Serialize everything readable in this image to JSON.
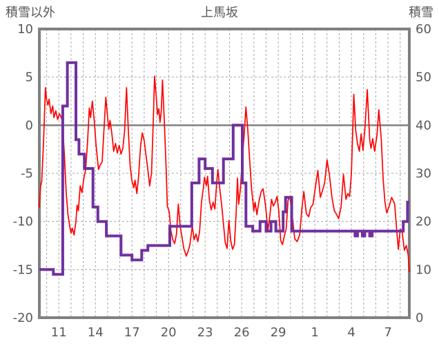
{
  "header": {
    "left_axis_title": "積雪以外",
    "chart_title": "上馬坂",
    "right_axis_title": "積雪"
  },
  "chart_data": {
    "type": "line",
    "title": "上馬坂",
    "legend_position": "none",
    "grid": {
      "vertical": "dashed-daily",
      "horizontal": "dashed-every-5",
      "zero_line": "solid"
    },
    "left_axis": {
      "label": "積雪以外",
      "min": -20,
      "max": 10,
      "ticks": [
        10,
        5,
        0,
        -5,
        -10,
        -15,
        -20
      ]
    },
    "right_axis": {
      "label": "積雪",
      "min": 0,
      "max": 60,
      "ticks": [
        60,
        50,
        40,
        30,
        20,
        10,
        0
      ]
    },
    "x_axis": {
      "start_day": 9.4,
      "end_day": 39.75,
      "gridline_step_days": 1,
      "tick_days": [
        11,
        14,
        17,
        20,
        23,
        26,
        29,
        32,
        35,
        38
      ],
      "tick_labels": [
        "11",
        "14",
        "17",
        "20",
        "23",
        "26",
        "29",
        "1",
        "4",
        "7"
      ]
    },
    "series": [
      {
        "name": "積雪以外(気温)",
        "axis": "left",
        "color": "#ff0000",
        "style": "line",
        "points": [
          [
            9.4,
            -8.5
          ],
          [
            9.5,
            -6.4
          ],
          [
            9.6,
            -5.8
          ],
          [
            9.75,
            -1.5
          ],
          [
            9.9,
            3.9
          ],
          [
            10.0,
            2.6
          ],
          [
            10.1,
            2.1
          ],
          [
            10.2,
            2.7
          ],
          [
            10.35,
            1.2
          ],
          [
            10.5,
            2.0
          ],
          [
            10.6,
            0.8
          ],
          [
            10.75,
            1.5
          ],
          [
            10.9,
            0.6
          ],
          [
            11.05,
            1.2
          ],
          [
            11.2,
            0.8
          ],
          [
            11.3,
            0.3
          ],
          [
            11.45,
            -3.0
          ],
          [
            11.6,
            -7.0
          ],
          [
            11.75,
            -9.3
          ],
          [
            11.9,
            -10.6
          ],
          [
            12.0,
            -11.2
          ],
          [
            12.1,
            -10.7
          ],
          [
            12.25,
            -11.4
          ],
          [
            12.4,
            -10.0
          ],
          [
            12.5,
            -8.3
          ],
          [
            12.6,
            -8.9
          ],
          [
            12.75,
            -6.3
          ],
          [
            12.9,
            -7.0
          ],
          [
            13.05,
            -5.5
          ],
          [
            13.2,
            -4.6
          ],
          [
            13.35,
            -1.8
          ],
          [
            13.5,
            1.8
          ],
          [
            13.6,
            0.8
          ],
          [
            13.75,
            2.5
          ],
          [
            13.9,
            0.5
          ],
          [
            14.05,
            -2.0
          ],
          [
            14.25,
            -4.6
          ],
          [
            14.4,
            -4.1
          ],
          [
            14.55,
            -3.8
          ],
          [
            14.7,
            -0.5
          ],
          [
            14.85,
            2.9
          ],
          [
            15.0,
            0.8
          ],
          [
            15.1,
            -0.4
          ],
          [
            15.2,
            0.5
          ],
          [
            15.35,
            -0.9
          ],
          [
            15.5,
            -2.7
          ],
          [
            15.65,
            -1.9
          ],
          [
            15.8,
            -2.9
          ],
          [
            15.95,
            -2.1
          ],
          [
            16.1,
            -3.0
          ],
          [
            16.25,
            -2.4
          ],
          [
            16.4,
            -0.5
          ],
          [
            16.55,
            3.9
          ],
          [
            16.7,
            -0.5
          ],
          [
            16.85,
            -4.3
          ],
          [
            17.0,
            -5.8
          ],
          [
            17.15,
            -6.5
          ],
          [
            17.25,
            -5.7
          ],
          [
            17.4,
            -7.1
          ],
          [
            17.55,
            -5.2
          ],
          [
            17.7,
            -2.2
          ],
          [
            17.85,
            -0.8
          ],
          [
            18.0,
            -1.6
          ],
          [
            18.15,
            -3.1
          ],
          [
            18.3,
            -4.6
          ],
          [
            18.45,
            -6.3
          ],
          [
            18.6,
            -5.0
          ],
          [
            18.75,
            0.5
          ],
          [
            18.85,
            5.1
          ],
          [
            19.0,
            2.8
          ],
          [
            19.1,
            1.1
          ],
          [
            19.2,
            1.7
          ],
          [
            19.3,
            0.3
          ],
          [
            19.4,
            1.4
          ],
          [
            19.5,
            4.7
          ],
          [
            19.65,
            0.5
          ],
          [
            19.8,
            -4.5
          ],
          [
            19.9,
            -8.4
          ],
          [
            20.05,
            -9.0
          ],
          [
            20.2,
            -11.0
          ],
          [
            20.35,
            -11.9
          ],
          [
            20.5,
            -12.3
          ],
          [
            20.65,
            -11.3
          ],
          [
            20.8,
            -8.2
          ],
          [
            20.95,
            -10.5
          ],
          [
            21.1,
            -11.6
          ],
          [
            21.25,
            -12.8
          ],
          [
            21.45,
            -13.6
          ],
          [
            21.6,
            -13.1
          ],
          [
            21.75,
            -12.4
          ],
          [
            21.95,
            -10.5
          ],
          [
            22.1,
            -11.9
          ],
          [
            22.25,
            -11.3
          ],
          [
            22.4,
            -12.1
          ],
          [
            22.55,
            -11.0
          ],
          [
            22.7,
            -8.0
          ],
          [
            22.85,
            -6.6
          ],
          [
            22.95,
            -5.4
          ],
          [
            23.1,
            -6.3
          ],
          [
            23.2,
            -5.3
          ],
          [
            23.35,
            -7.8
          ],
          [
            23.5,
            -8.8
          ],
          [
            23.65,
            -8.0
          ],
          [
            23.8,
            -8.7
          ],
          [
            23.95,
            -5.9
          ],
          [
            24.05,
            -4.6
          ],
          [
            24.2,
            -6.6
          ],
          [
            24.35,
            -8.2
          ],
          [
            24.5,
            -10.2
          ],
          [
            24.65,
            -12.2
          ],
          [
            24.8,
            -12.8
          ],
          [
            24.95,
            -9.9
          ],
          [
            25.1,
            -12.0
          ],
          [
            25.25,
            -12.9
          ],
          [
            25.4,
            -12.4
          ],
          [
            25.55,
            -9.0
          ],
          [
            25.65,
            -5.5
          ],
          [
            25.75,
            -8.2
          ],
          [
            25.9,
            -6.5
          ],
          [
            26.05,
            -3.5
          ],
          [
            26.2,
            -1.0
          ],
          [
            26.35,
            1.9
          ],
          [
            26.5,
            -0.5
          ],
          [
            26.65,
            -3.5
          ],
          [
            26.8,
            -6.5
          ],
          [
            27.0,
            -8.9
          ],
          [
            27.1,
            -8.0
          ],
          [
            27.25,
            -9.3
          ],
          [
            27.4,
            -8.0
          ],
          [
            27.6,
            -6.9
          ],
          [
            27.75,
            -6.6
          ],
          [
            27.95,
            -8.3
          ],
          [
            28.15,
            -10.9
          ],
          [
            28.3,
            -9.5
          ],
          [
            28.45,
            -7.7
          ],
          [
            28.6,
            -8.4
          ],
          [
            28.75,
            -8.0
          ],
          [
            28.9,
            -7.4
          ],
          [
            29.05,
            -9.0
          ],
          [
            29.2,
            -12.0
          ],
          [
            29.35,
            -12.4
          ],
          [
            29.5,
            -11.5
          ],
          [
            29.65,
            -10.8
          ],
          [
            29.8,
            -7.8
          ],
          [
            29.95,
            -7.4
          ],
          [
            30.15,
            -9.5
          ],
          [
            30.35,
            -11.8
          ],
          [
            30.55,
            -12.1
          ],
          [
            30.75,
            -11.4
          ],
          [
            30.95,
            -8.5
          ],
          [
            31.1,
            -6.9
          ],
          [
            31.3,
            -9.2
          ],
          [
            31.5,
            -9.5
          ],
          [
            31.65,
            -8.6
          ],
          [
            31.85,
            -8.2
          ],
          [
            32.05,
            -6.4
          ],
          [
            32.25,
            -4.7
          ],
          [
            32.45,
            -7.5
          ],
          [
            32.6,
            -6.9
          ],
          [
            32.8,
            -6.0
          ],
          [
            33.0,
            -3.6
          ],
          [
            33.2,
            -5.2
          ],
          [
            33.4,
            -7.5
          ],
          [
            33.6,
            -8.9
          ],
          [
            33.8,
            -9.3
          ],
          [
            33.95,
            -9.7
          ],
          [
            34.15,
            -8.5
          ],
          [
            34.35,
            -5.1
          ],
          [
            34.55,
            -7.7
          ],
          [
            34.7,
            -7.1
          ],
          [
            34.85,
            -7.4
          ],
          [
            35.0,
            -5.0
          ],
          [
            35.2,
            3.2
          ],
          [
            35.35,
            -0.5
          ],
          [
            35.5,
            -1.9
          ],
          [
            35.65,
            -2.7
          ],
          [
            35.8,
            -0.9
          ],
          [
            35.95,
            -2.6
          ],
          [
            36.1,
            -0.5
          ],
          [
            36.3,
            3.7
          ],
          [
            36.5,
            -1.5
          ],
          [
            36.6,
            -2.4
          ],
          [
            36.75,
            -1.4
          ],
          [
            36.9,
            -2.7
          ],
          [
            37.1,
            -1.0
          ],
          [
            37.25,
            1.6
          ],
          [
            37.45,
            -1.5
          ],
          [
            37.6,
            -5.5
          ],
          [
            37.75,
            -8.0
          ],
          [
            37.9,
            -9.1
          ],
          [
            38.1,
            -8.4
          ],
          [
            38.3,
            -7.5
          ],
          [
            38.45,
            -7.9
          ],
          [
            38.55,
            -8.2
          ],
          [
            38.7,
            -10.7
          ],
          [
            38.85,
            -12.9
          ],
          [
            39.0,
            -10.8
          ],
          [
            39.15,
            -11.0
          ],
          [
            39.35,
            -13.0
          ],
          [
            39.5,
            -12.5
          ],
          [
            39.65,
            -13.4
          ],
          [
            39.75,
            -15.2
          ]
        ]
      },
      {
        "name": "積雪",
        "axis": "right",
        "color": "#7030a0",
        "style": "step",
        "points": [
          [
            9.4,
            10
          ],
          [
            10.55,
            9
          ],
          [
            11.32,
            44
          ],
          [
            11.7,
            53
          ],
          [
            12.4,
            37
          ],
          [
            12.65,
            34
          ],
          [
            13.1,
            31
          ],
          [
            13.8,
            23
          ],
          [
            14.2,
            20
          ],
          [
            14.9,
            17
          ],
          [
            16.1,
            13
          ],
          [
            17.0,
            12
          ],
          [
            17.8,
            14
          ],
          [
            18.3,
            15
          ],
          [
            20.1,
            19
          ],
          [
            21.9,
            28
          ],
          [
            22.5,
            33
          ],
          [
            23.0,
            31
          ],
          [
            23.6,
            28
          ],
          [
            24.5,
            33
          ],
          [
            25.3,
            40
          ],
          [
            26.05,
            28
          ],
          [
            26.35,
            19
          ],
          [
            26.9,
            18
          ],
          [
            27.5,
            20
          ],
          [
            28.0,
            18
          ],
          [
            28.4,
            20
          ],
          [
            28.8,
            18
          ],
          [
            29.4,
            22
          ],
          [
            29.6,
            25
          ],
          [
            30.1,
            18
          ],
          [
            35.3,
            17
          ],
          [
            35.5,
            18
          ],
          [
            35.9,
            17
          ],
          [
            36.1,
            18
          ],
          [
            36.5,
            17
          ],
          [
            36.7,
            18
          ],
          [
            39.25,
            20
          ],
          [
            39.6,
            24
          ]
        ]
      }
    ]
  },
  "colors": {
    "temperature_line": "#ff0000",
    "snow_line": "#7030a0",
    "plot_border": "#808080",
    "zero_line": "#808080",
    "gridline": "#a6a6a6",
    "text": "#595959",
    "background": "#ffffff"
  }
}
